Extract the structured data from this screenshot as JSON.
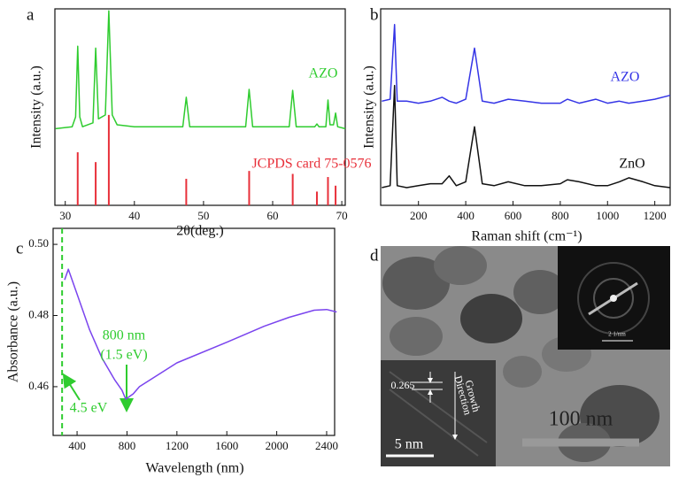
{
  "chart_data": [
    {
      "type": "line",
      "panel_label": "a",
      "xlabel": "2θ(deg.)",
      "ylabel": "Intensity (a.u.)",
      "xlim": [
        28.5,
        70.5
      ],
      "xticks": [
        30,
        40,
        50,
        60,
        70
      ],
      "ylim": [
        0,
        100
      ],
      "series": [
        {
          "name": "AZO",
          "color": "#2fcc2f",
          "x": [
            28.6,
            31.0,
            31.5,
            31.8,
            32.1,
            32.5,
            34.0,
            34.4,
            34.8,
            35.8,
            36.3,
            36.8,
            37.5,
            40,
            47.0,
            47.5,
            48.0,
            56.1,
            56.6,
            57.1,
            62.4,
            62.9,
            63.4,
            66.1,
            66.4,
            66.7,
            67.7,
            68.0,
            68.3,
            68.8,
            69.1,
            69.4,
            70.5
          ],
          "values": [
            39,
            40,
            45,
            81,
            45,
            40,
            42,
            80,
            44,
            46,
            99,
            46,
            41,
            40,
            40,
            55,
            40,
            40,
            59,
            40,
            40,
            58.5,
            40,
            40,
            41.4,
            40,
            40,
            53.6,
            41,
            41,
            47,
            40,
            39
          ]
        },
        {
          "name": "JCPDS card 75-0576",
          "color": "#e8303a",
          "style": "stem",
          "x": [
            31.8,
            34.4,
            36.3,
            47.5,
            56.6,
            62.9,
            66.4,
            68.0,
            69.1
          ],
          "values": [
            27,
            22,
            46,
            13.5,
            17.5,
            16,
            7,
            14.4,
            10
          ]
        }
      ]
    },
    {
      "type": "line",
      "panel_label": "b",
      "xlabel": "Raman shift (cm⁻¹)",
      "ylabel": "Intensity (a.u.)",
      "xlim": [
        40,
        1265
      ],
      "xticks": [
        200,
        400,
        600,
        800,
        1000,
        1200
      ],
      "ylim": [
        0,
        100
      ],
      "series": [
        {
          "name": "AZO",
          "color": "#3535e6",
          "x": [
            45,
            80,
            99,
            110,
            150,
            200,
            250,
            300,
            330,
            360,
            400,
            437,
            470,
            520,
            580,
            650,
            720,
            800,
            830,
            880,
            950,
            1000,
            1050,
            1090,
            1150,
            1200,
            1265
          ],
          "values": [
            53,
            54,
            92,
            53,
            53,
            52,
            53,
            55,
            53,
            52,
            54,
            80,
            53,
            52,
            54,
            53,
            52,
            52,
            54,
            52,
            54,
            52,
            53,
            52,
            53,
            54,
            56
          ]
        },
        {
          "name": "ZnO",
          "color": "#111111",
          "x": [
            45,
            80,
            99,
            110,
            150,
            200,
            250,
            300,
            330,
            360,
            400,
            437,
            470,
            520,
            580,
            650,
            720,
            800,
            830,
            880,
            950,
            1000,
            1050,
            1090,
            1150,
            1200,
            1265
          ],
          "values": [
            9,
            10,
            61,
            10,
            9,
            10,
            11,
            11,
            15,
            10,
            12,
            40,
            11,
            10,
            12,
            10,
            10,
            11,
            13,
            12,
            10,
            10,
            12,
            14,
            12,
            10,
            9
          ]
        }
      ]
    },
    {
      "type": "line",
      "panel_label": "c",
      "xlabel": "Wavelength (nm)",
      "ylabel": "Absorbance (a.u.)",
      "xlim": [
        208,
        2464
      ],
      "xticks": [
        400,
        800,
        1200,
        1600,
        2000,
        2400
      ],
      "ylim": [
        0.4463,
        0.5045
      ],
      "yticks": [
        0.46,
        0.48,
        {
          "value": 0.5,
          "label": "0.50"
        }
      ],
      "series": [
        {
          "color": "#7a44ee",
          "x": [
            300,
            330,
            400,
            500,
            600,
            700,
            760,
            790,
            850,
            900,
            1200,
            1600,
            1900,
            2100,
            2300,
            2400,
            2480
          ],
          "values": [
            0.49,
            0.493,
            0.486,
            0.476,
            0.468,
            0.462,
            0.459,
            0.4565,
            0.458,
            0.46,
            0.4667,
            0.4725,
            0.477,
            0.4795,
            0.4815,
            0.4817,
            0.481
          ]
        }
      ],
      "reference_line": {
        "x": 280,
        "color": "#2fcc2f"
      },
      "annotations": [
        "800 nm",
        "(1.5 eV)",
        "4.5 eV"
      ]
    }
  ],
  "tem_image": {
    "panel_label": "d",
    "scale_bar": "100 nm",
    "inset_scale_bar": "5 nm",
    "lattice_spacing": "0.265",
    "direction_label": [
      "Growth",
      "Direction"
    ],
    "diffraction_scale": "2 1/nm"
  }
}
